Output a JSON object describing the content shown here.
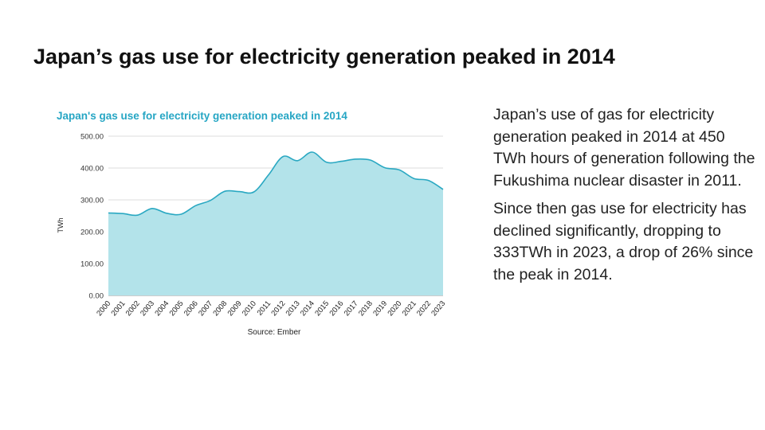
{
  "slide": {
    "title": "Japan’s gas use for electricity generation peaked in 2014",
    "paragraphs": [
      "Japan’s use of gas for electricity generation peaked in 2014 at 450 TWh hours of generation following the Fukushima nuclear disaster in 2011.",
      "Since then gas use for electricity has declined significantly, dropping to 333TWh in 2023, a drop of 26% since the peak in 2014."
    ]
  },
  "chart_data": {
    "type": "area",
    "title": "Japan's gas use for electricity generation peaked in 2014",
    "xlabel": "",
    "ylabel": "TWh",
    "source": "Source: Ember",
    "categories": [
      "2000",
      "2001",
      "2002",
      "2003",
      "2004",
      "2005",
      "2006",
      "2007",
      "2008",
      "2009",
      "2010",
      "2011",
      "2012",
      "2013",
      "2014",
      "2015",
      "2016",
      "2017",
      "2018",
      "2019",
      "2020",
      "2021",
      "2022",
      "2023"
    ],
    "yticks": [
      "0.00",
      "100.00",
      "200.00",
      "300.00",
      "400.00",
      "500.00"
    ],
    "ylim": [
      0,
      500
    ],
    "grid": true,
    "series": [
      {
        "values": [
          259,
          257,
          252,
          273,
          258,
          255,
          282,
          298,
          327,
          326,
          325,
          378,
          436,
          423,
          450,
          418,
          421,
          428,
          425,
          401,
          394,
          367,
          361,
          333
        ]
      }
    ],
    "colors": {
      "fill": "#b3e3ea",
      "line": "#2aa8c2",
      "title": "#26a6c4",
      "grid": "#dddddd"
    }
  }
}
